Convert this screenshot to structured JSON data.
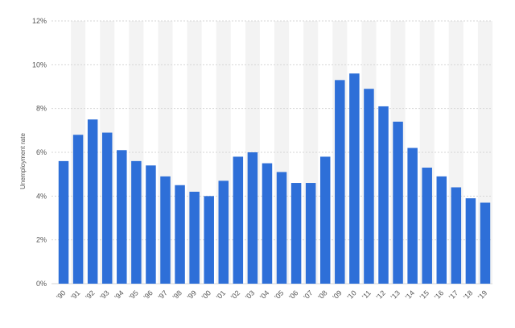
{
  "chart_data": {
    "type": "bar",
    "ylabel": "Unemployment rate",
    "xlabel": "",
    "title": "",
    "ylim": [
      0,
      12
    ],
    "y_ticks": [
      0,
      2,
      4,
      6,
      8,
      10,
      12
    ],
    "y_tick_labels": [
      "0%",
      "2%",
      "4%",
      "6%",
      "8%",
      "10%",
      "12%"
    ],
    "grid": true,
    "categories": [
      "'90",
      "'91",
      "'92",
      "'93",
      "'94",
      "'95",
      "'96",
      "'97",
      "'98",
      "'99",
      "'00",
      "'01",
      "'02",
      "'03",
      "'04",
      "'05",
      "'06",
      "'07",
      "'08",
      "'09",
      "'10",
      "'11",
      "'12",
      "'13",
      "'14",
      "'15",
      "'16",
      "'17",
      "'18",
      "'19"
    ],
    "values": [
      5.6,
      6.8,
      7.5,
      6.9,
      6.1,
      5.6,
      5.4,
      4.9,
      4.5,
      4.2,
      4.0,
      4.7,
      5.8,
      6.0,
      5.5,
      5.1,
      4.6,
      4.6,
      5.8,
      9.3,
      9.6,
      8.9,
      8.1,
      7.4,
      6.2,
      5.3,
      4.9,
      4.4,
      3.9,
      3.7
    ]
  },
  "colors": {
    "bar": "#2e6fd8",
    "grid": "#d6d6d6",
    "band": "#f3f3f3",
    "text": "#555555"
  }
}
